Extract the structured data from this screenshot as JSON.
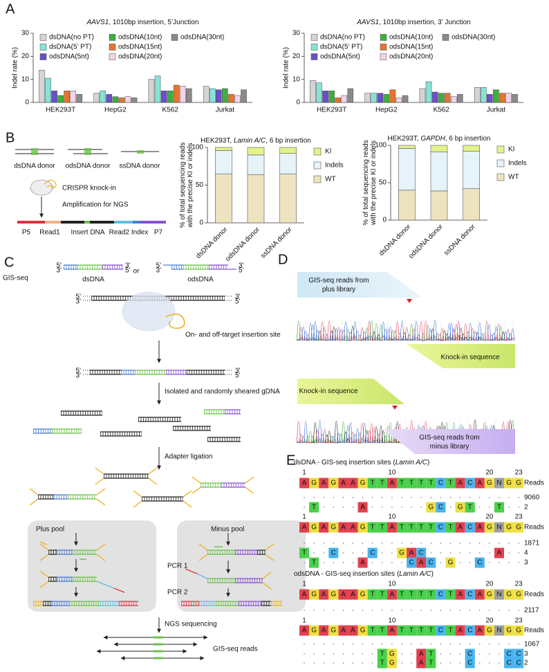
{
  "panel_labels": [
    "A",
    "B",
    "C",
    "D",
    "E"
  ],
  "chart_data": [
    {
      "type": "bar",
      "title_parts": [
        "AAVS1",
        ", 1010bp insertion, 5’Junction"
      ],
      "ylabel": "Indel rate (%)",
      "categories": [
        "HEK293T",
        "HepG2",
        "K562",
        "Jurkat"
      ],
      "ylim": [
        0,
        30
      ],
      "yticks": [
        0,
        10,
        20,
        30
      ],
      "series": [
        {
          "name": "dsDNA(no PT)",
          "color": "#d4d4d4",
          "values": [
            14,
            4,
            10,
            7
          ]
        },
        {
          "name": "dsDNA(5’ PT)",
          "color": "#86e3d6",
          "values": [
            10.5,
            5,
            11.5,
            6
          ]
        },
        {
          "name": "odsDNA(5nt)",
          "color": "#6a4fc9",
          "values": [
            5,
            3.5,
            5,
            5.5
          ]
        },
        {
          "name": "odsDNA(10nt)",
          "color": "#3fae3f",
          "values": [
            3,
            2.5,
            5,
            6
          ]
        },
        {
          "name": "odsDNA(15nt)",
          "color": "#e9732b",
          "values": [
            5,
            2,
            7.5,
            3.5
          ]
        },
        {
          "name": "odsDNA(20nt)",
          "color": "#f2d3ea",
          "values": [
            5,
            2.5,
            7,
            3
          ]
        },
        {
          "name": "odsDNA(30nt)",
          "color": "#8a8a8a",
          "values": [
            3.5,
            2,
            6,
            5.5
          ]
        }
      ]
    },
    {
      "type": "bar",
      "title_parts": [
        "AAVS1",
        ", 1010bp insertion, 3’ Junction"
      ],
      "ylabel": "Indel rate (%)",
      "categories": [
        "HEK293T",
        "HepG2",
        "K562",
        "Jurkat"
      ],
      "ylim": [
        0,
        30
      ],
      "yticks": [
        0,
        10,
        20,
        30
      ],
      "series": [
        {
          "name": "dsDNA(no PT)",
          "color": "#d4d4d4",
          "values": [
            9.5,
            4,
            6,
            6.5
          ]
        },
        {
          "name": "dsDNA(5’ PT)",
          "color": "#86e3d6",
          "values": [
            8.5,
            4,
            9,
            6.5
          ]
        },
        {
          "name": "odsDNA(5nt)",
          "color": "#6a4fc9",
          "values": [
            5,
            4,
            4.5,
            3.5
          ]
        },
        {
          "name": "odsDNA(10nt)",
          "color": "#3fae3f",
          "values": [
            5,
            3.5,
            4,
            5.5
          ]
        },
        {
          "name": "odsDNA(15nt)",
          "color": "#e9732b",
          "values": [
            2,
            5.5,
            4,
            4
          ]
        },
        {
          "name": "odsDNA(20nt)",
          "color": "#f2d3ea",
          "values": [
            3,
            2,
            2.5,
            4
          ]
        },
        {
          "name": "odsDNA(30nt)",
          "color": "#8a8a8a",
          "values": [
            6,
            3,
            3.5,
            3.5
          ]
        }
      ]
    },
    {
      "type": "stacked_bar",
      "title_parts": [
        "HEK293T, ",
        "Lamin A/C",
        ", 6 bp insertion"
      ],
      "ylabel": [
        "% of total sequencing reads",
        "with the precise KI or indels"
      ],
      "categories": [
        "dsDNA donor",
        "odsDNA donor",
        "ssDNA donor"
      ],
      "ylim": [
        0,
        100
      ],
      "yticks": [
        0,
        50,
        100
      ],
      "series": [
        {
          "name": "WT",
          "color": "#ede3bf",
          "values": [
            65,
            64,
            65
          ]
        },
        {
          "name": "Indels",
          "color": "#e6f4fa",
          "values": [
            31,
            26,
            27
          ]
        },
        {
          "name": "KI",
          "color": "#e4f28e",
          "values": [
            4,
            10,
            8
          ]
        }
      ]
    },
    {
      "type": "stacked_bar",
      "title_parts": [
        "HEK293T, ",
        "GAPDH",
        ", 6 bp insertion"
      ],
      "ylabel": [
        "% of total sequencing reads",
        "with the precise KI or indels"
      ],
      "categories": [
        "dsDNA donor",
        "odsDNA donor",
        "ssDNA donor"
      ],
      "ylim": [
        0,
        100
      ],
      "yticks": [
        0,
        50,
        100
      ],
      "series": [
        {
          "name": "WT",
          "color": "#ede3bf",
          "values": [
            40,
            39,
            42
          ]
        },
        {
          "name": "Indels",
          "color": "#e6f4fa",
          "values": [
            56,
            52,
            50
          ]
        },
        {
          "name": "KI",
          "color": "#e4f28e",
          "values": [
            4,
            9,
            8
          ]
        }
      ]
    }
  ],
  "panel_b_diagram": {
    "donors": [
      "dsDNA donor",
      "odsDNA donor",
      "ssDNA donor"
    ],
    "steps": [
      "CRISPR knock-in",
      "Amplification for NGS"
    ],
    "construct": [
      "P5",
      "Read1",
      "Insert DNA",
      "Read2 Index",
      "P7"
    ]
  },
  "panel_c": {
    "title": "GIS-seq",
    "five_prime": "5'",
    "three_prime": "3'",
    "donors": [
      "dsDNA",
      "odsDNA"
    ],
    "or": "or",
    "site": "On- and off-target insertion site",
    "steps": [
      "Isolated and randomly sheared gDNA",
      "Adapter ligation",
      "NGS sequencing"
    ],
    "pools": [
      "Plus pool",
      "Minus pool"
    ],
    "pcr": [
      "PCR 1",
      "PCR 2"
    ],
    "reads": "GIS-seq reads"
  },
  "panel_d": {
    "boxes": [
      [
        "GIS-seq reads from",
        "plus library"
      ],
      [
        "Knock-in sequence"
      ],
      [
        "Knock-in sequence"
      ],
      [
        "GIS-seq reads from",
        "minus library"
      ]
    ]
  },
  "panel_e": {
    "reads_label": "Reads",
    "positions": [
      1,
      10,
      20,
      23
    ],
    "sections": [
      {
        "title_parts": [
          "dsDNA - GIS-seq insertion sites (",
          "Lamin A/C",
          ")"
        ],
        "blocks": [
          {
            "reference": "AGAGAAGTTATTTTCTACAGNGG",
            "rows": [
              {
                "seq": "·······················",
                "reads": 9060
              },
              {
                "seq": "·T····A······GC·GT··T··",
                "reads": 2
              }
            ]
          },
          {
            "reference": "AGAGAAGTTATTTTCTACAGNGG",
            "rows": [
              {
                "seq": "·······················",
                "reads": 1871
              },
              {
                "seq": "T··C···C··GAC·······A··",
                "reads": 4
              },
              {
                "seq": "·T····A····CAC·G··C····",
                "reads": 3
              }
            ]
          }
        ]
      },
      {
        "title_parts": [
          "odsDNA - GIS-seq insertion sites (",
          "Lamin A/C",
          ")"
        ],
        "blocks": [
          {
            "reference": "AGAGAAGTTATTTTCTACAGNGG",
            "rows": [
              {
                "seq": "·······················",
                "reads": 2117
              }
            ]
          },
          {
            "reference": "AGAGAAGTTATTTTCTACAGNGG",
            "rows": [
              {
                "seq": "·······················",
                "reads": 1067
              },
              {
                "seq": "········TG··AT···C···CC",
                "reads": 3
              },
              {
                "seq": "········TG··AT···C···CC",
                "reads": 2
              }
            ]
          }
        ]
      }
    ]
  }
}
